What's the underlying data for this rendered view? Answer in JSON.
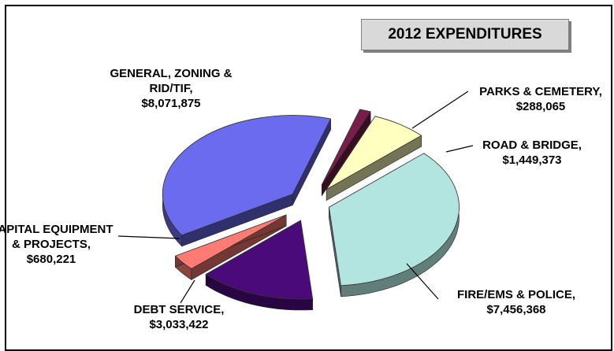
{
  "chart_data": {
    "type": "pie",
    "title": "2012 EXPENDITURES",
    "style": "3d-exploded",
    "slices": [
      {
        "label_lines": [
          "PARKS & CEMETERY,",
          "$288,065"
        ],
        "value": 288065,
        "color": "#7a1d4a"
      },
      {
        "label_lines": [
          "ROAD & BRIDGE,",
          "$1,449,373"
        ],
        "value": 1449373,
        "color": "#ffffc0"
      },
      {
        "label_lines": [
          "FIRE/EMS & POLICE,",
          "$7,456,368"
        ],
        "value": 7456368,
        "color": "#b3e5e0"
      },
      {
        "label_lines": [
          "DEBT SERVICE,",
          "$3,033,422"
        ],
        "value": 3033422,
        "color": "#4b0a7a"
      },
      {
        "label_lines": [
          "CAPITAL EQUIPMENT",
          "& PROJECTS,",
          "$680,221"
        ],
        "value": 680221,
        "color": "#ff7b73"
      },
      {
        "label_lines": [
          "GENERAL, ZONING &",
          "RID/TIF,",
          "$8,071,875"
        ],
        "value": 8071875,
        "color": "#6b6bf0"
      }
    ]
  }
}
